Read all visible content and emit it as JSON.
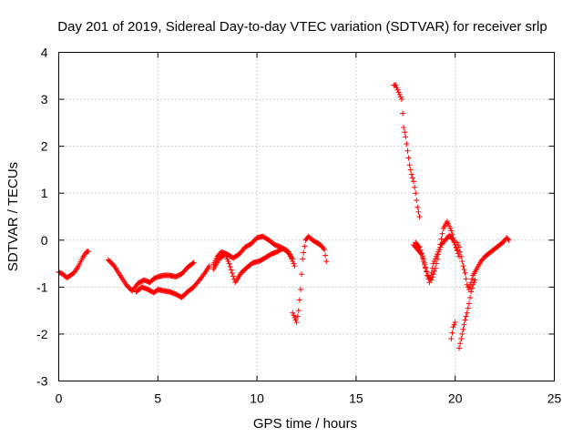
{
  "chart_data": {
    "type": "scatter",
    "title": "Day 201 of 2019, Sidereal Day-to-day VTEC variation (SDTVAR) for receiver srlp",
    "xlabel": "GPS time / hours",
    "ylabel": "SDTVAR / TECUs",
    "xlim": [
      0,
      25
    ],
    "ylim": [
      -3,
      4
    ],
    "xticks": [
      0,
      5,
      10,
      15,
      20,
      25
    ],
    "yticks": [
      -3,
      -2,
      -1,
      0,
      1,
      2,
      3,
      4
    ],
    "grid": true,
    "marker": "+",
    "color": "#ff0000",
    "tracks": [
      [
        [
          0.0,
          -0.68
        ],
        [
          0.2,
          -0.72
        ],
        [
          0.4,
          -0.8
        ],
        [
          0.6,
          -0.75
        ],
        [
          0.8,
          -0.68
        ],
        [
          1.0,
          -0.55
        ],
        [
          1.2,
          -0.38
        ],
        [
          1.4,
          -0.25
        ],
        [
          1.5,
          -0.24
        ]
      ],
      [
        [
          2.5,
          -0.42
        ],
        [
          2.8,
          -0.55
        ],
        [
          3.1,
          -0.75
        ],
        [
          3.4,
          -0.95
        ],
        [
          3.7,
          -1.08
        ],
        [
          4.0,
          -0.92
        ],
        [
          4.3,
          -0.85
        ],
        [
          4.6,
          -0.9
        ],
        [
          4.8,
          -0.82
        ],
        [
          5.0,
          -0.78
        ],
        [
          5.3,
          -0.75
        ],
        [
          5.6,
          -0.75
        ],
        [
          5.9,
          -0.78
        ],
        [
          6.2,
          -0.72
        ],
        [
          6.5,
          -0.58
        ],
        [
          6.8,
          -0.48
        ]
      ],
      [
        [
          3.9,
          -1.1
        ],
        [
          4.2,
          -1.0
        ],
        [
          4.5,
          -1.05
        ],
        [
          4.8,
          -1.12
        ],
        [
          5.0,
          -1.05
        ],
        [
          5.3,
          -1.08
        ],
        [
          5.6,
          -1.1
        ],
        [
          5.9,
          -1.15
        ],
        [
          6.2,
          -1.22
        ],
        [
          6.5,
          -1.1
        ],
        [
          6.8,
          -1.0
        ],
        [
          7.1,
          -0.85
        ],
        [
          7.4,
          -0.68
        ],
        [
          7.6,
          -0.55
        ]
      ],
      [
        [
          7.8,
          -0.52
        ],
        [
          8.0,
          -0.35
        ],
        [
          8.2,
          -0.25
        ],
        [
          8.5,
          -0.3
        ],
        [
          8.8,
          -0.38
        ],
        [
          9.1,
          -0.3
        ],
        [
          9.4,
          -0.15
        ],
        [
          9.7,
          -0.08
        ],
        [
          10.0,
          0.05
        ],
        [
          10.3,
          0.08
        ],
        [
          10.6,
          0.0
        ],
        [
          10.9,
          -0.1
        ],
        [
          11.2,
          -0.15
        ],
        [
          11.5,
          -0.22
        ],
        [
          11.8,
          -0.4
        ]
      ],
      [
        [
          7.8,
          -0.62
        ],
        [
          8.1,
          -0.4
        ],
        [
          8.4,
          -0.3
        ],
        [
          8.6,
          -0.5
        ],
        [
          8.9,
          -0.9
        ],
        [
          9.2,
          -0.7
        ],
        [
          9.5,
          -0.58
        ],
        [
          9.8,
          -0.48
        ],
        [
          10.1,
          -0.45
        ],
        [
          10.4,
          -0.38
        ],
        [
          10.7,
          -0.3
        ],
        [
          11.0,
          -0.25
        ],
        [
          11.3,
          -0.18
        ],
        [
          11.6,
          -0.25
        ],
        [
          11.9,
          -0.55
        ]
      ],
      [
        [
          11.8,
          -1.55
        ],
        [
          11.9,
          -1.65
        ],
        [
          12.0,
          -1.75
        ],
        [
          12.1,
          -1.5
        ],
        [
          12.2,
          -1.05
        ],
        [
          12.3,
          -0.4
        ],
        [
          12.45,
          0.0
        ],
        [
          12.6,
          0.08
        ],
        [
          12.8,
          0.0
        ],
        [
          13.0,
          -0.05
        ],
        [
          13.2,
          -0.1
        ],
        [
          13.4,
          -0.2
        ],
        [
          13.5,
          -0.45
        ]
      ],
      [
        [
          16.9,
          3.3
        ],
        [
          17.0,
          3.3
        ],
        [
          17.1,
          3.2
        ],
        [
          17.2,
          3.1
        ],
        [
          17.3,
          3.0
        ],
        [
          17.4,
          2.4
        ],
        [
          17.5,
          2.2
        ],
        [
          17.6,
          1.9
        ],
        [
          17.7,
          1.6
        ],
        [
          17.8,
          1.4
        ],
        [
          17.9,
          1.25
        ],
        [
          18.0,
          1.0
        ],
        [
          18.1,
          0.7
        ],
        [
          18.2,
          0.5
        ]
      ],
      [
        [
          17.9,
          -0.1
        ],
        [
          18.1,
          -0.2
        ],
        [
          18.3,
          -0.3
        ],
        [
          18.5,
          -0.6
        ],
        [
          18.7,
          -0.9
        ],
        [
          18.9,
          -0.5
        ],
        [
          19.1,
          -0.3
        ],
        [
          19.3,
          -0.1
        ],
        [
          19.5,
          0.0
        ],
        [
          19.7,
          0.1
        ],
        [
          19.9,
          0.0
        ],
        [
          20.1,
          -0.2
        ]
      ],
      [
        [
          18.0,
          -0.05
        ],
        [
          18.2,
          -0.15
        ],
        [
          18.4,
          -0.4
        ],
        [
          18.6,
          -0.75
        ],
        [
          18.8,
          -0.85
        ],
        [
          19.0,
          -0.6
        ],
        [
          19.2,
          -0.2
        ],
        [
          19.4,
          0.25
        ],
        [
          19.6,
          0.4
        ],
        [
          19.8,
          0.2
        ],
        [
          20.0,
          -0.1
        ],
        [
          20.2,
          -0.35
        ]
      ],
      [
        [
          19.8,
          -2.1
        ],
        [
          19.9,
          -1.85
        ],
        [
          20.0,
          -1.75
        ]
      ],
      [
        [
          20.2,
          -2.3
        ],
        [
          20.3,
          -2.1
        ],
        [
          20.4,
          -1.9
        ],
        [
          20.5,
          -1.7
        ],
        [
          20.6,
          -1.55
        ],
        [
          20.7,
          -1.35
        ],
        [
          20.8,
          -1.1
        ],
        [
          20.9,
          -0.95
        ],
        [
          21.0,
          -0.85
        ]
      ],
      [
        [
          20.1,
          -0.05
        ],
        [
          20.2,
          -0.15
        ],
        [
          20.3,
          -0.35
        ],
        [
          20.4,
          -0.55
        ],
        [
          20.5,
          -0.7
        ],
        [
          20.6,
          -0.95
        ],
        [
          20.7,
          -1.05
        ],
        [
          20.8,
          -0.9
        ],
        [
          20.9,
          -0.75
        ],
        [
          21.1,
          -0.6
        ],
        [
          21.3,
          -0.45
        ],
        [
          21.5,
          -0.35
        ],
        [
          21.8,
          -0.25
        ],
        [
          22.1,
          -0.15
        ],
        [
          22.4,
          -0.05
        ],
        [
          22.6,
          0.05
        ],
        [
          22.7,
          0.0
        ]
      ]
    ]
  }
}
